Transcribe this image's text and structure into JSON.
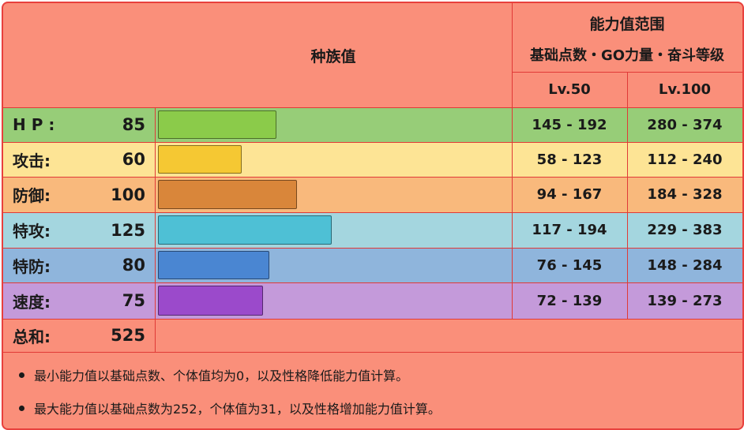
{
  "header": {
    "base_stats_title": "种族值",
    "range_title": "能力值范围",
    "range_subtitle": "基础点数・GO力量・奋斗等级",
    "lv50": "Lv.50",
    "lv100": "Lv.100"
  },
  "stats": [
    {
      "label": "H P :",
      "value": "85",
      "fraction": 0.3333,
      "lv50": "145 - 192",
      "lv100": "280 - 374",
      "row_color": "#97cd78",
      "bar_color": "#8bcb4a"
    },
    {
      "label": "攻击:",
      "value": "60",
      "fraction": 0.2353,
      "lv50": "58 - 123",
      "lv100": "112 - 240",
      "row_color": "#fde495",
      "bar_color": "#f5c833"
    },
    {
      "label": "防御:",
      "value": "100",
      "fraction": 0.3922,
      "lv50": "94 - 167",
      "lv100": "184 - 328",
      "row_color": "#f9b97c",
      "bar_color": "#d9863a"
    },
    {
      "label": "特攻:",
      "value": "125",
      "fraction": 0.4902,
      "lv50": "117 - 194",
      "lv100": "229 - 383",
      "row_color": "#a4d6df",
      "bar_color": "#4ec0d5"
    },
    {
      "label": "特防:",
      "value": "80",
      "fraction": 0.3137,
      "lv50": "76 - 145",
      "lv100": "148 - 284",
      "row_color": "#8fb5dc",
      "bar_color": "#4a86d2"
    },
    {
      "label": "速度:",
      "value": "75",
      "fraction": 0.2941,
      "lv50": "72 - 139",
      "lv100": "139 - 273",
      "row_color": "#c49ada",
      "bar_color": "#9b4acb"
    }
  ],
  "total": {
    "label": "总和:",
    "value": "525"
  },
  "notes": [
    "最小能力值以基础点数、个体值均为0，以及性格降低能力值计算。",
    "最大能力值以基础点数为252，个体值为31，以及性格增加能力值计算。"
  ],
  "colors": {
    "background": "#fa8f7a",
    "border": "#e8403d"
  }
}
